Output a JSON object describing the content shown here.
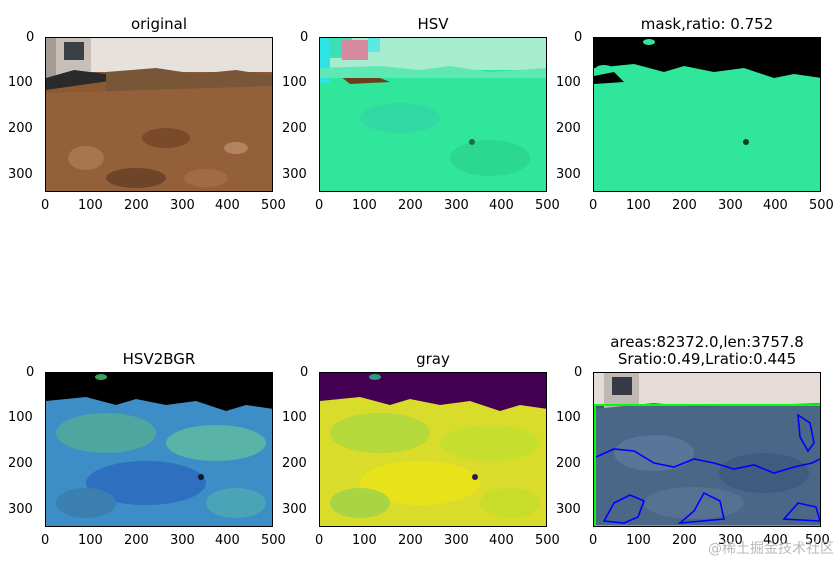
{
  "panels": [
    {
      "id": "original",
      "title": "original",
      "kind": "photo"
    },
    {
      "id": "hsv",
      "title": "HSV",
      "kind": "hsv"
    },
    {
      "id": "mask",
      "title": "mask,ratio: 0.752",
      "kind": "mask"
    },
    {
      "id": "hsv2bgr",
      "title": "HSV2BGR",
      "kind": "hsv2bgr"
    },
    {
      "id": "gray",
      "title": "gray",
      "kind": "gray"
    },
    {
      "id": "contours",
      "title_line1": "areas:82372.0,len:3757.8",
      "title_line2": "Sratio:0.49,Lratio:0.445",
      "kind": "contour"
    }
  ],
  "axes": {
    "x_ticks": [
      "0",
      "100",
      "200",
      "300",
      "400",
      "500"
    ],
    "y_ticks": [
      "0",
      "100",
      "200",
      "300"
    ],
    "x_range": [
      0,
      500
    ],
    "y_range": [
      0,
      333
    ]
  },
  "colors": {
    "hsv_green": "#2fe69a",
    "mask_black": "#000000",
    "bgr_blue": "#3d8ec6",
    "gray_yellow": "#d9dc2a",
    "gray_purple": "#440154",
    "contour_blue": "#0000ff",
    "contour_green": "#00ff00"
  },
  "watermark": "@稀土掘金技术社区"
}
